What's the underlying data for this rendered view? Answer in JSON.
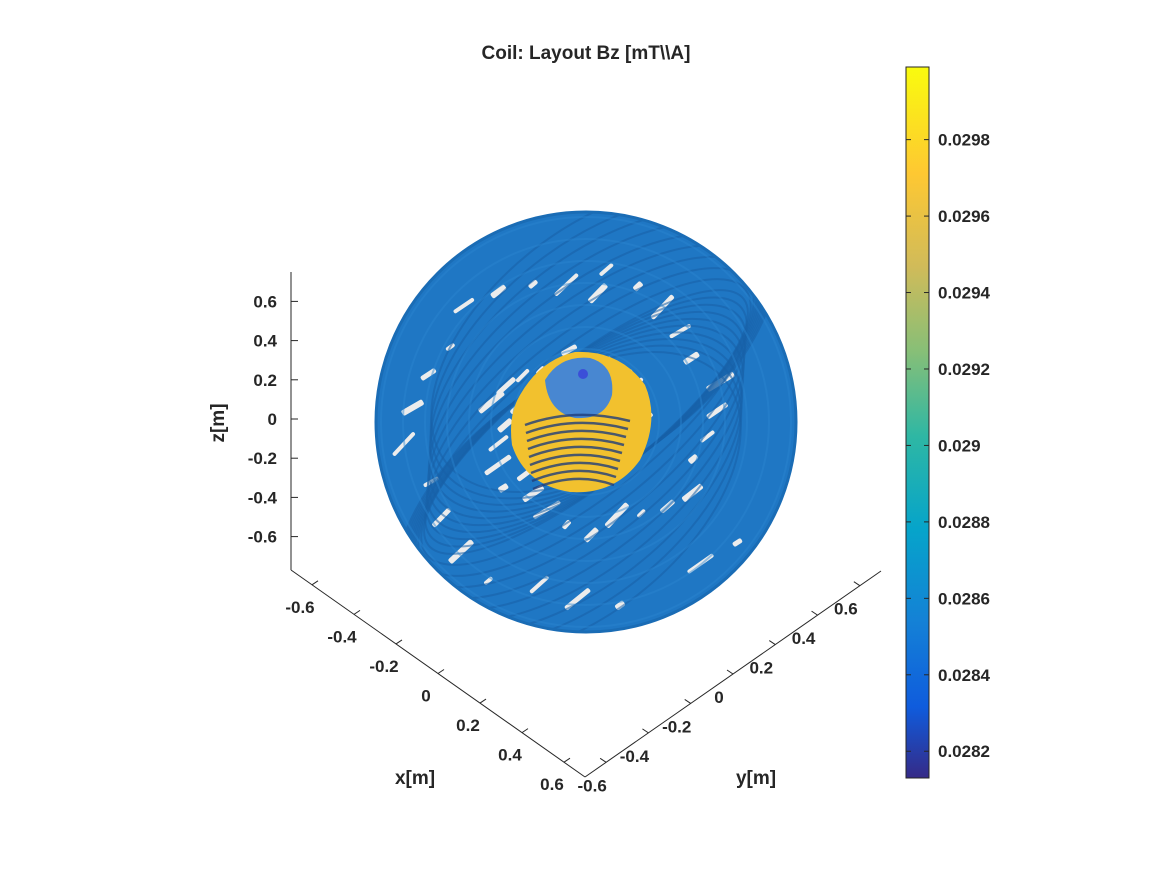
{
  "chart_data": {
    "type": "3d-surface",
    "title": "Coil: Layout Bz [mT\\\\A]",
    "xlabel": "x[m]",
    "ylabel": "y[m]",
    "zlabel": "z[m]",
    "x_ticks": [
      "-0.6",
      "-0.4",
      "-0.2",
      "0",
      "0.2",
      "0.4",
      "0.6"
    ],
    "y_ticks": [
      "-0.6",
      "-0.4",
      "-0.2",
      "0",
      "0.2",
      "0.4",
      "0.6"
    ],
    "z_ticks": [
      "0.6",
      "0.4",
      "0.2",
      "0",
      "-0.2",
      "-0.4",
      "-0.6"
    ],
    "xlim": [
      -0.7,
      0.7
    ],
    "ylim": [
      -0.7,
      0.7
    ],
    "zlim": [
      -0.7,
      0.7
    ],
    "colorbar": {
      "ticks": [
        "0.0298",
        "0.0296",
        "0.0294",
        "0.0292",
        "0.029",
        "0.0288",
        "0.0286",
        "0.0284",
        "0.0282"
      ],
      "tick_values": [
        0.0298,
        0.0296,
        0.0294,
        0.0292,
        0.029,
        0.0288,
        0.0286,
        0.0284,
        0.0282
      ],
      "min": 0.02813,
      "max": 0.02999,
      "colormap": "parula"
    },
    "colors": {
      "coil": "#1f77c4",
      "coil_dark": "#1760a8",
      "target_high": "#f2c12e",
      "target_low": "#3a82e0",
      "gap": "#ececec"
    },
    "grid": false
  }
}
